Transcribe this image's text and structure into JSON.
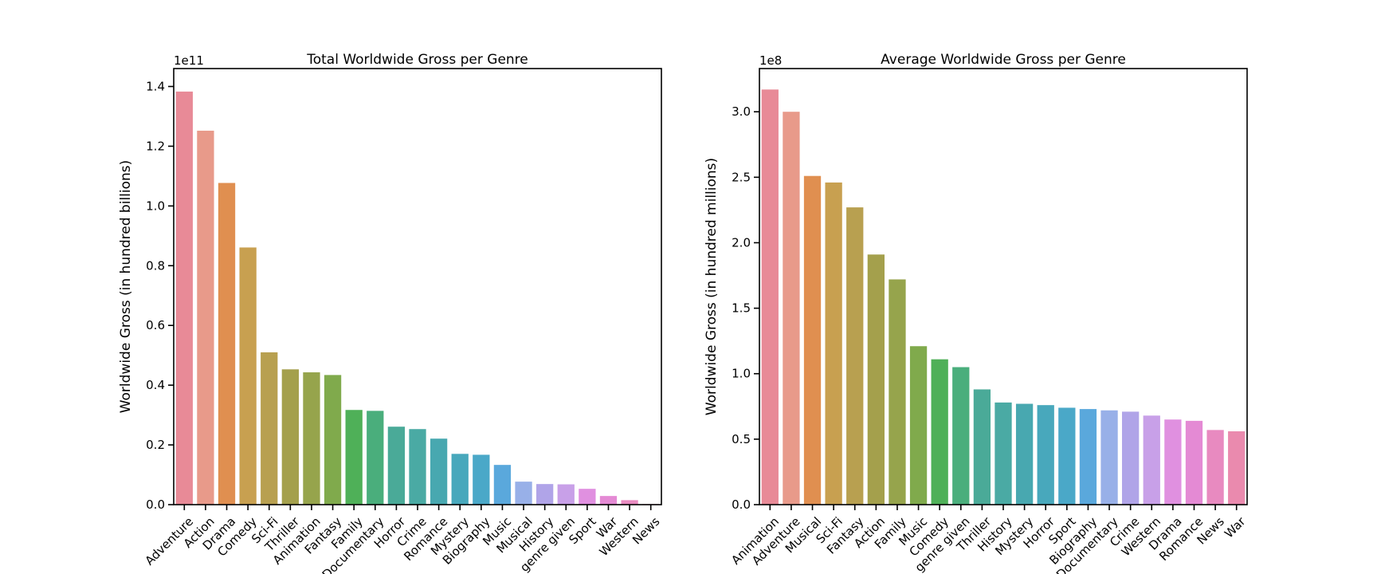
{
  "chart_data": [
    {
      "type": "bar",
      "title": "Total Worldwide Gross per Genre",
      "ylabel": "Worldwide Gross (in hundred billions)",
      "xlabel": "",
      "offset_text": "1e11",
      "ylim": [
        0,
        1.46
      ],
      "yticks": [
        "0.0",
        "0.2",
        "0.4",
        "0.6",
        "0.8",
        "1.0",
        "1.2",
        "1.4"
      ],
      "categories": [
        "Adventure",
        "Action",
        "Drama",
        "Comedy",
        "Sci-Fi",
        "Thriller",
        "Animation",
        "Fantasy",
        "Family",
        "Documentary",
        "Horror",
        "Crime",
        "Romance",
        "Mystery",
        "Biography",
        "Music",
        "Musical",
        "History",
        "genre given",
        "Sport",
        "War",
        "Western",
        "News"
      ],
      "values": [
        1.383,
        1.252,
        1.077,
        0.861,
        0.51,
        0.453,
        0.443,
        0.434,
        0.317,
        0.314,
        0.261,
        0.253,
        0.221,
        0.17,
        0.167,
        0.133,
        0.077,
        0.069,
        0.068,
        0.053,
        0.029,
        0.015,
        0.002
      ],
      "colors": [
        "#e88a97",
        "#e89a8a",
        "#e08f50",
        "#c8a050",
        "#b8a050",
        "#a4a04c",
        "#96a44c",
        "#80aa4c",
        "#4fb058",
        "#4aae7c",
        "#4aaa98",
        "#4aaaa4",
        "#48a8b0",
        "#48a8bc",
        "#4aa8c8",
        "#5aa8dc",
        "#98b0e8",
        "#b0a4e8",
        "#c8a0e8",
        "#e090e0",
        "#e48ad4",
        "#e88ac0",
        "#ea8aae"
      ]
    },
    {
      "type": "bar",
      "title": "Average Worldwide Gross per Genre",
      "ylabel": "Worldwide Gross (in hundred millions)",
      "xlabel": "",
      "offset_text": "1e8",
      "ylim": [
        0,
        3.33
      ],
      "yticks": [
        "0.0",
        "0.5",
        "1.0",
        "1.5",
        "2.0",
        "2.5",
        "3.0"
      ],
      "categories": [
        "Animation",
        "Adventure",
        "Musical",
        "Sci-Fi",
        "Fantasy",
        "Action",
        "Family",
        "Music",
        "Comedy",
        "genre given",
        "Thriller",
        "History",
        "Mystery",
        "Horror",
        "Sport",
        "Biography",
        "Documentary",
        "Crime",
        "Western",
        "Drama",
        "Romance",
        "News",
        "War"
      ],
      "values": [
        3.17,
        3.0,
        2.51,
        2.46,
        2.27,
        1.91,
        1.72,
        1.21,
        1.11,
        1.05,
        0.88,
        0.78,
        0.77,
        0.76,
        0.74,
        0.73,
        0.72,
        0.71,
        0.68,
        0.65,
        0.64,
        0.57,
        0.56
      ],
      "colors": [
        "#e88a97",
        "#e89a8a",
        "#e08f50",
        "#c8a050",
        "#b8a050",
        "#a4a04c",
        "#96a44c",
        "#80aa4c",
        "#4fb058",
        "#4aae7c",
        "#4aaa98",
        "#4aaaa4",
        "#48a8b0",
        "#48a8bc",
        "#4aa8c8",
        "#5aa8dc",
        "#98b0e8",
        "#b0a4e8",
        "#c8a0e8",
        "#e090e0",
        "#e48ad4",
        "#e88ac0",
        "#ea8aae"
      ]
    }
  ]
}
